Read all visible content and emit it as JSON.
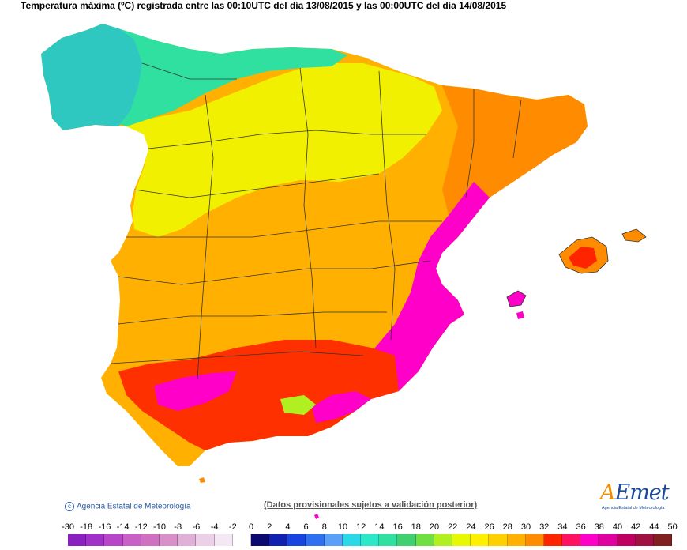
{
  "title": "Temperatura máxima (ºC) registrada entre las 00:10UTC del día 13/08/2015 y las 00:00UTC del día 14/08/2015",
  "credit": "Agencia Estatal de Meteorología",
  "disclaimer": "(Datos provisionales sujetos a validación posterior)",
  "logo": {
    "text_a": "A",
    "text_rest": "Emet",
    "subtitle": "Agencia Estatal de Meteorología"
  },
  "legend": {
    "labels": [
      "-30",
      "-18",
      "-16",
      "-14",
      "-12",
      "-10",
      "-8",
      "-6",
      "-4",
      "-2",
      "0",
      "2",
      "4",
      "6",
      "8",
      "10",
      "12",
      "14",
      "16",
      "18",
      "20",
      "22",
      "24",
      "26",
      "28",
      "30",
      "32",
      "34",
      "36",
      "38",
      "40",
      "42",
      "44",
      "50"
    ],
    "colors": [
      "#8a20c0",
      "#a030c8",
      "#b845c8",
      "#c860c8",
      "#d070c0",
      "#d890c8",
      "#e0b0d8",
      "#ecd0e8",
      "#f4e8f4",
      "#ffffff",
      "#0a0a70",
      "#1020b0",
      "#1844e0",
      "#2e70f0",
      "#5aa0f8",
      "#2ad8e8",
      "#2ce8c8",
      "#30e0a0",
      "#40d070",
      "#70e040",
      "#b0f020",
      "#e8f800",
      "#fff000",
      "#ffd000",
      "#ffb000",
      "#ff8c00",
      "#ff2400",
      "#ff1060",
      "#ff00c8",
      "#e000a0",
      "#c00060",
      "#a01040",
      "#802020"
    ]
  },
  "map_regions": {
    "galicia": "#2ec8c0",
    "cantabric": "#30e0a0",
    "north_plateau": "#f0f000",
    "south_plateau": "#ffb000",
    "hot_core": "#ff3000",
    "extreme": "#ff00c8",
    "sea": "#ffffff"
  }
}
